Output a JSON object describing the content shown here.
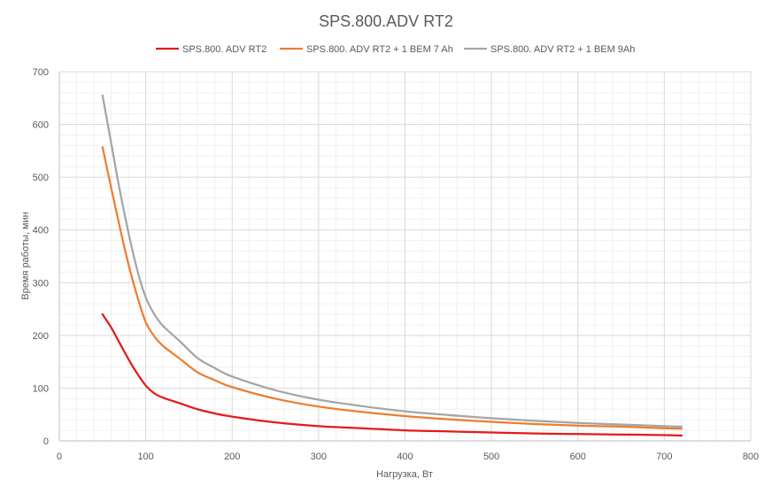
{
  "chart_data": {
    "type": "line",
    "title": "SPS.800.ADV RT2",
    "xlabel": "Нагрузка, Вт",
    "ylabel": "Время работы, мин",
    "xlim": [
      0,
      800
    ],
    "ylim": [
      0,
      700
    ],
    "xticks": [
      0,
      100,
      200,
      300,
      400,
      500,
      600,
      700,
      800
    ],
    "yticks": [
      0,
      100,
      200,
      300,
      400,
      500,
      600,
      700
    ],
    "grid": true,
    "legend_position": "top",
    "series": [
      {
        "name": "SPS.800. ADV RT2",
        "color": "#e31a1c",
        "x": [
          50,
          60,
          70,
          80,
          90,
          100,
          110,
          120,
          140,
          160,
          180,
          200,
          250,
          300,
          350,
          400,
          450,
          500,
          550,
          600,
          650,
          700,
          720
        ],
        "y": [
          240,
          215,
          185,
          155,
          128,
          105,
          90,
          82,
          71,
          60,
          52,
          46,
          35,
          28,
          24,
          20,
          18,
          16,
          14,
          13,
          12,
          11,
          10
        ]
      },
      {
        "name": "SPS.800. ADV RT2 + 1 BEM 7 Ah",
        "color": "#ed7d31",
        "x": [
          50,
          60,
          70,
          80,
          90,
          100,
          110,
          120,
          140,
          160,
          180,
          200,
          250,
          300,
          350,
          400,
          450,
          500,
          550,
          600,
          650,
          700,
          720
        ],
        "y": [
          557,
          480,
          405,
          335,
          275,
          225,
          198,
          180,
          155,
          130,
          115,
          102,
          80,
          65,
          55,
          47,
          41,
          36,
          32,
          29,
          27,
          24,
          23
        ]
      },
      {
        "name": "SPS.800. ADV RT2 + 1 BEM 9Ah",
        "color": "#a5a5a5",
        "x": [
          50,
          60,
          70,
          80,
          90,
          100,
          110,
          120,
          140,
          160,
          180,
          200,
          250,
          300,
          350,
          400,
          450,
          500,
          550,
          600,
          650,
          700,
          720
        ],
        "y": [
          655,
          565,
          475,
          395,
          325,
          272,
          240,
          218,
          188,
          157,
          138,
          122,
          96,
          78,
          66,
          56,
          49,
          43,
          38,
          34,
          31,
          28,
          27
        ]
      }
    ]
  }
}
